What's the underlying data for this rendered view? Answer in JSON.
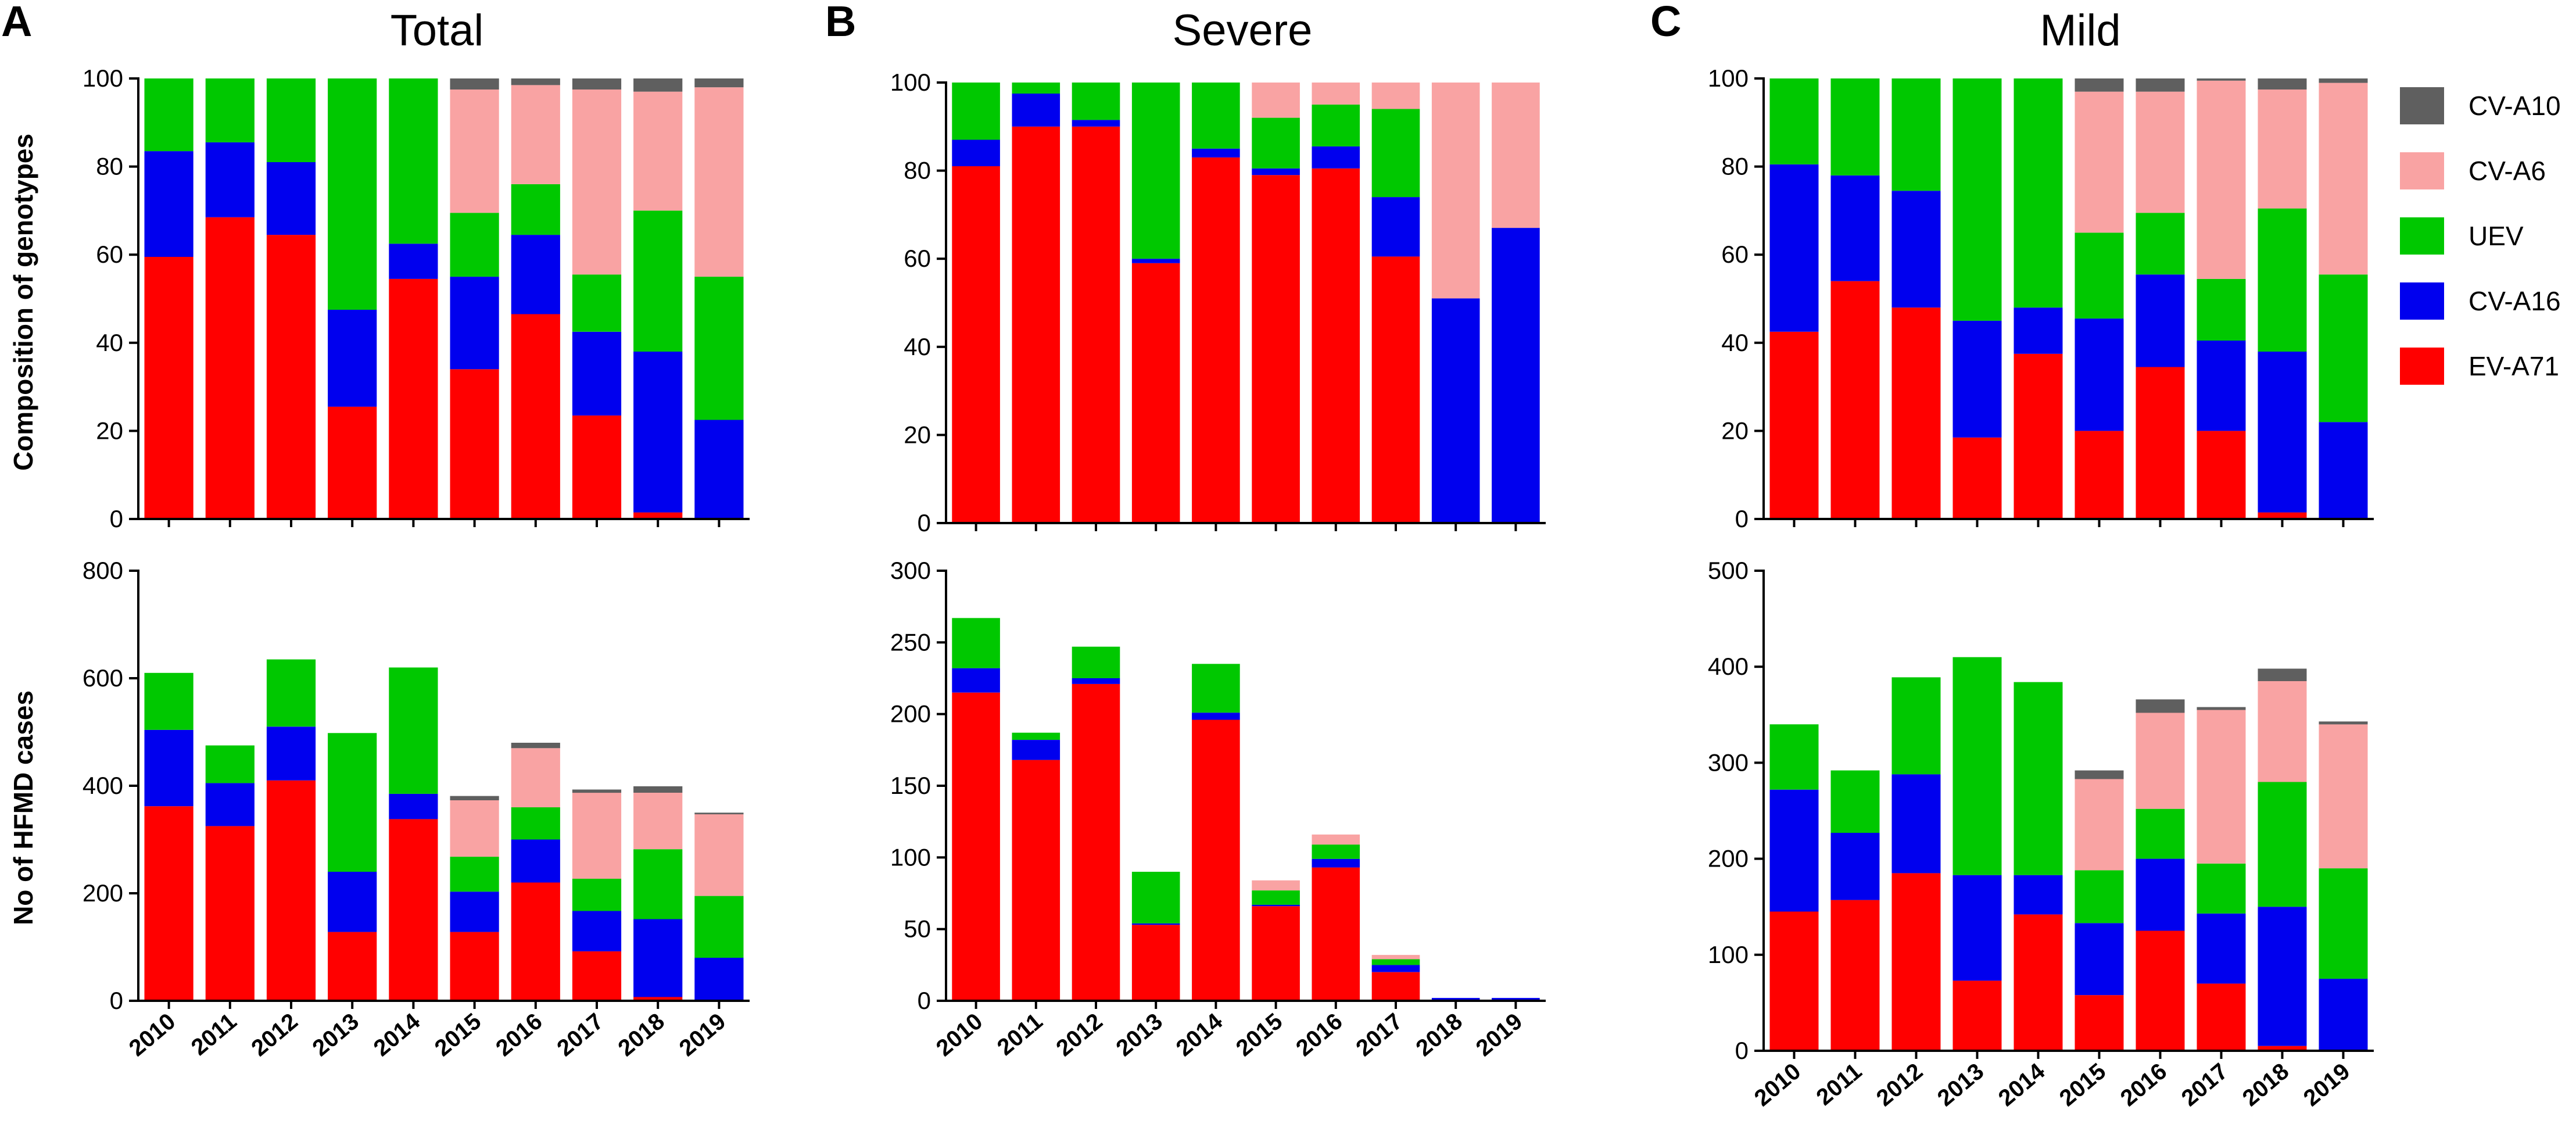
{
  "figure": {
    "panel_letters": [
      "A",
      "B",
      "C"
    ],
    "ylabel_top": "Composition of genotypes",
    "ylabel_bottom": "No of HFMD cases"
  },
  "legend": [
    {
      "name": "CV-A10",
      "color": "#5f5f5f"
    },
    {
      "name": "CV-A6",
      "color": "#f9a3a3"
    },
    {
      "name": "UEV",
      "color": "#00c800"
    },
    {
      "name": "CV-A16",
      "color": "#0000ee"
    },
    {
      "name": "EV-A71",
      "color": "#ff0000"
    }
  ],
  "chart_data": [
    {
      "id": "A-top",
      "panel": "A",
      "title": "Total",
      "type": "bar",
      "stacked": true,
      "categories": [
        "2010",
        "2011",
        "2012",
        "2013",
        "2014",
        "2015",
        "2016",
        "2017",
        "2018",
        "2019"
      ],
      "ylabel": "Composition of genotypes",
      "ylim": [
        0,
        100
      ],
      "yticks": [
        0,
        20,
        40,
        60,
        80,
        100
      ],
      "series": [
        {
          "name": "EV-A71",
          "values": [
            59.5,
            68.5,
            64.5,
            25.5,
            54.5,
            34,
            46.5,
            23.5,
            1.5,
            0
          ]
        },
        {
          "name": "CV-A16",
          "values": [
            24,
            17,
            16.5,
            22,
            8,
            21,
            18,
            19,
            36.5,
            22.5
          ]
        },
        {
          "name": "UEV",
          "values": [
            16.5,
            14.5,
            19,
            52.5,
            37.5,
            14.5,
            11.5,
            13,
            32,
            32.5
          ]
        },
        {
          "name": "CV-A6",
          "values": [
            0,
            0,
            0,
            0,
            0,
            28,
            22.5,
            42,
            27,
            43
          ]
        },
        {
          "name": "CV-A10",
          "values": [
            0,
            0,
            0,
            0,
            0,
            2.5,
            1.5,
            2.5,
            3,
            2
          ]
        }
      ]
    },
    {
      "id": "B-top",
      "panel": "B",
      "title": "Severe",
      "type": "bar",
      "stacked": true,
      "categories": [
        "2010",
        "2011",
        "2012",
        "2013",
        "2014",
        "2015",
        "2016",
        "2017",
        "2018",
        "2019"
      ],
      "ylabel": "",
      "ylim": [
        0,
        100
      ],
      "yticks": [
        0,
        20,
        40,
        60,
        80,
        100
      ],
      "series": [
        {
          "name": "EV-A71",
          "values": [
            81,
            90,
            90,
            59,
            83,
            79,
            80.5,
            60.5,
            0,
            0
          ]
        },
        {
          "name": "CV-A16",
          "values": [
            6,
            7.5,
            1.5,
            1,
            2,
            1.5,
            5,
            13.5,
            51,
            67
          ]
        },
        {
          "name": "UEV",
          "values": [
            13,
            2.5,
            8.5,
            40,
            15,
            11.5,
            9.5,
            20,
            0,
            0
          ]
        },
        {
          "name": "CV-A6",
          "values": [
            0,
            0,
            0,
            0,
            0,
            8,
            5,
            6,
            49,
            33
          ]
        },
        {
          "name": "CV-A10",
          "values": [
            0,
            0,
            0,
            0,
            0,
            0,
            0,
            0,
            0,
            0
          ]
        }
      ]
    },
    {
      "id": "C-top",
      "panel": "C",
      "title": "Mild",
      "type": "bar",
      "stacked": true,
      "categories": [
        "2010",
        "2011",
        "2012",
        "2013",
        "2014",
        "2015",
        "2016",
        "2017",
        "2018",
        "2019"
      ],
      "ylabel": "",
      "ylim": [
        0,
        100
      ],
      "yticks": [
        0,
        20,
        40,
        60,
        80,
        100
      ],
      "series": [
        {
          "name": "EV-A71",
          "values": [
            42.5,
            54,
            48,
            18.5,
            37.5,
            20,
            34.5,
            20,
            1.5,
            0
          ]
        },
        {
          "name": "CV-A16",
          "values": [
            38,
            24,
            26.5,
            26.5,
            10.5,
            25.5,
            21,
            20.5,
            36.5,
            22
          ]
        },
        {
          "name": "UEV",
          "values": [
            19.5,
            22,
            25.5,
            55,
            52,
            19.5,
            14,
            14,
            32.5,
            33.5
          ]
        },
        {
          "name": "CV-A6",
          "values": [
            0,
            0,
            0,
            0,
            0,
            32,
            27.5,
            45,
            27,
            43.5
          ]
        },
        {
          "name": "CV-A10",
          "values": [
            0,
            0,
            0,
            0,
            0,
            3,
            3,
            0.5,
            2.5,
            1
          ]
        }
      ]
    },
    {
      "id": "A-bottom",
      "panel": "A",
      "title": "",
      "type": "bar",
      "stacked": true,
      "categories": [
        "2010",
        "2011",
        "2012",
        "2013",
        "2014",
        "2015",
        "2016",
        "2017",
        "2018",
        "2019"
      ],
      "ylabel": "No of HFMD cases",
      "ylim": [
        0,
        800
      ],
      "yticks": [
        0,
        200,
        400,
        600,
        800
      ],
      "series": [
        {
          "name": "EV-A71",
          "values": [
            362,
            325,
            410,
            128,
            338,
            128,
            220,
            92,
            7,
            0
          ]
        },
        {
          "name": "CV-A16",
          "values": [
            142,
            80,
            100,
            112,
            47,
            75,
            80,
            75,
            145,
            80
          ]
        },
        {
          "name": "UEV",
          "values": [
            106,
            70,
            125,
            258,
            235,
            65,
            60,
            60,
            130,
            115
          ]
        },
        {
          "name": "CV-A6",
          "values": [
            0,
            0,
            0,
            0,
            0,
            105,
            110,
            160,
            105,
            152
          ]
        },
        {
          "name": "CV-A10",
          "values": [
            0,
            0,
            0,
            0,
            0,
            8,
            10,
            6,
            12,
            3
          ]
        }
      ]
    },
    {
      "id": "B-bottom",
      "panel": "B",
      "title": "",
      "type": "bar",
      "stacked": true,
      "categories": [
        "2010",
        "2011",
        "2012",
        "2013",
        "2014",
        "2015",
        "2016",
        "2017",
        "2018",
        "2019"
      ],
      "ylabel": "",
      "ylim": [
        0,
        300
      ],
      "yticks": [
        0,
        50,
        100,
        150,
        200,
        250,
        300
      ],
      "series": [
        {
          "name": "EV-A71",
          "values": [
            215,
            168,
            221,
            53,
            196,
            66,
            93,
            20,
            0,
            0
          ]
        },
        {
          "name": "CV-A16",
          "values": [
            17,
            14,
            4,
            1,
            5,
            1,
            6,
            5,
            2,
            2
          ]
        },
        {
          "name": "UEV",
          "values": [
            35,
            5,
            22,
            36,
            34,
            10,
            10,
            4,
            0,
            0
          ]
        },
        {
          "name": "CV-A6",
          "values": [
            0,
            0,
            0,
            0,
            0,
            7,
            7,
            3,
            0,
            0
          ]
        },
        {
          "name": "CV-A10",
          "values": [
            0,
            0,
            0,
            0,
            0,
            0,
            0,
            0,
            0,
            0
          ]
        }
      ]
    },
    {
      "id": "C-bottom",
      "panel": "C",
      "title": "",
      "type": "bar",
      "stacked": true,
      "categories": [
        "2010",
        "2011",
        "2012",
        "2013",
        "2014",
        "2015",
        "2016",
        "2017",
        "2018",
        "2019"
      ],
      "ylabel": "",
      "ylim": [
        0,
        500
      ],
      "yticks": [
        0,
        100,
        200,
        300,
        400,
        500
      ],
      "series": [
        {
          "name": "EV-A71",
          "values": [
            145,
            157,
            185,
            73,
            142,
            58,
            125,
            70,
            5,
            0
          ]
        },
        {
          "name": "CV-A16",
          "values": [
            127,
            70,
            103,
            110,
            41,
            75,
            75,
            73,
            145,
            75
          ]
        },
        {
          "name": "UEV",
          "values": [
            68,
            65,
            101,
            227,
            201,
            55,
            52,
            52,
            130,
            115
          ]
        },
        {
          "name": "CV-A6",
          "values": [
            0,
            0,
            0,
            0,
            0,
            95,
            100,
            160,
            105,
            150
          ]
        },
        {
          "name": "CV-A10",
          "values": [
            0,
            0,
            0,
            0,
            0,
            9,
            14,
            3,
            13,
            3
          ]
        }
      ]
    }
  ]
}
